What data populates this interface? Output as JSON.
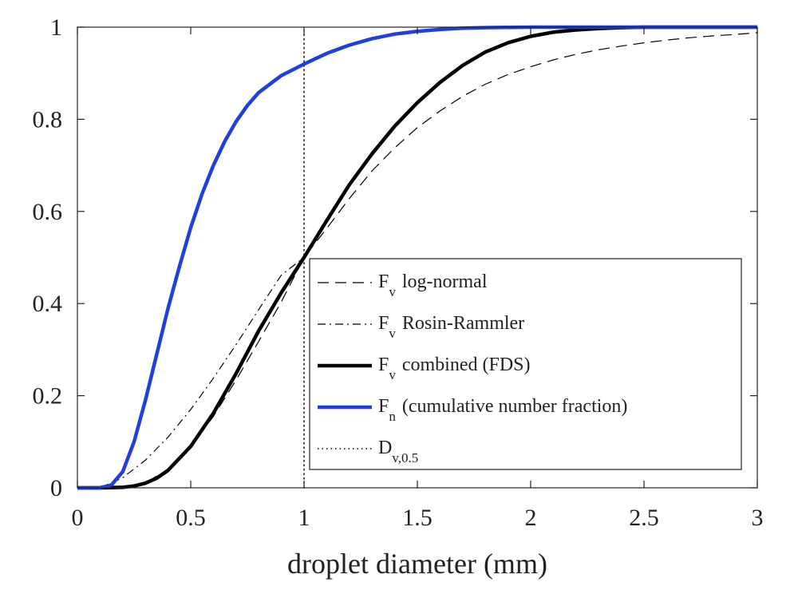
{
  "chart_data": {
    "type": "line",
    "title": "",
    "xlabel": "droplet diameter (mm)",
    "ylabel": "",
    "xlim": [
      0,
      3
    ],
    "ylim": [
      0,
      1
    ],
    "x_ticks": [
      0,
      0.5,
      1,
      1.5,
      2,
      2.5,
      3
    ],
    "x_tick_labels": [
      "0",
      "0.5",
      "1",
      "1.5",
      "2",
      "2.5",
      "3"
    ],
    "y_ticks": [
      0,
      0.2,
      0.4,
      0.6,
      0.8,
      1
    ],
    "y_tick_labels": [
      "0",
      "0.2",
      "0.4",
      "0.6",
      "0.8",
      "1"
    ],
    "grid": false,
    "legend_position": "center-right",
    "vertical_line_x": 1,
    "series": [
      {
        "key": "lognormal",
        "label_main": "F",
        "label_sub": "v",
        "label_rest": "log-normal",
        "color": "#000000",
        "style": "dashed",
        "x": [
          0,
          0.1,
          0.2,
          0.3,
          0.4,
          0.5,
          0.6,
          0.7,
          0.8,
          0.9,
          1.0,
          1.1,
          1.2,
          1.3,
          1.4,
          1.5,
          1.6,
          1.7,
          1.8,
          1.9,
          2.0,
          2.1,
          2.2,
          2.3,
          2.4,
          2.5,
          2.6,
          2.7,
          2.8,
          2.9,
          3.0
        ],
        "y": [
          0,
          0.0,
          0.001,
          0.011,
          0.04,
          0.09,
          0.155,
          0.234,
          0.318,
          0.404,
          0.5,
          0.563,
          0.628,
          0.688,
          0.738,
          0.782,
          0.818,
          0.85,
          0.876,
          0.897,
          0.914,
          0.929,
          0.941,
          0.951,
          0.959,
          0.966,
          0.972,
          0.977,
          0.981,
          0.984,
          0.988
        ]
      },
      {
        "key": "rosin",
        "label_main": "F",
        "label_sub": "v",
        "label_rest": "Rosin-Rammler",
        "color": "#000000",
        "style": "dashdot",
        "x": [
          0,
          0.05,
          0.1,
          0.15,
          0.2,
          0.3,
          0.4,
          0.5,
          0.6,
          0.7,
          0.8,
          0.9,
          1.0
        ],
        "y": [
          0,
          0.0003,
          0.003,
          0.01,
          0.022,
          0.06,
          0.11,
          0.17,
          0.238,
          0.311,
          0.387,
          0.462,
          0.5
        ]
      },
      {
        "key": "combined",
        "label_main": "F",
        "label_sub": "v",
        "label_rest": "combined (FDS)",
        "color": "#000000",
        "style": "solid-thick",
        "x": [
          0,
          0.1,
          0.2,
          0.25,
          0.3,
          0.35,
          0.4,
          0.5,
          0.6,
          0.7,
          0.8,
          0.9,
          1.0,
          1.1,
          1.2,
          1.3,
          1.4,
          1.5,
          1.6,
          1.7,
          1.8,
          1.9,
          2.0,
          2.1,
          2.2,
          2.3,
          2.4,
          2.5,
          2.6,
          2.7,
          2.8,
          2.9,
          3.0
        ],
        "y": [
          0,
          0,
          0.001,
          0.004,
          0.01,
          0.021,
          0.038,
          0.09,
          0.162,
          0.248,
          0.341,
          0.424,
          0.5,
          0.58,
          0.658,
          0.725,
          0.785,
          0.836,
          0.88,
          0.917,
          0.946,
          0.966,
          0.98,
          0.989,
          0.994,
          0.997,
          0.999,
          1.0,
          1.0,
          1.0,
          1.0,
          1.0,
          1.0
        ]
      },
      {
        "key": "number",
        "label_main": "F",
        "label_sub": "n",
        "label_rest": "(cumulative number fraction)",
        "color": "#1f3fe0",
        "style": "solid-thick",
        "x": [
          0,
          0.1,
          0.15,
          0.2,
          0.25,
          0.3,
          0.35,
          0.4,
          0.45,
          0.5,
          0.55,
          0.6,
          0.65,
          0.7,
          0.75,
          0.8,
          0.9,
          1.0,
          1.1,
          1.2,
          1.3,
          1.4,
          1.5,
          1.6,
          1.7,
          1.8,
          2.0,
          2.5,
          3.0
        ],
        "y": [
          0,
          0.0,
          0.006,
          0.035,
          0.1,
          0.19,
          0.29,
          0.39,
          0.48,
          0.565,
          0.638,
          0.7,
          0.752,
          0.795,
          0.83,
          0.858,
          0.895,
          0.92,
          0.943,
          0.961,
          0.975,
          0.985,
          0.991,
          0.995,
          0.998,
          0.999,
          1.0,
          1.0,
          1.0
        ]
      },
      {
        "key": "dv05",
        "label_main": "D",
        "label_sub": "v,0.5",
        "label_rest": "",
        "color": "#000000",
        "style": "dotted",
        "x": [
          1,
          1
        ],
        "y": [
          0,
          1
        ]
      }
    ]
  }
}
